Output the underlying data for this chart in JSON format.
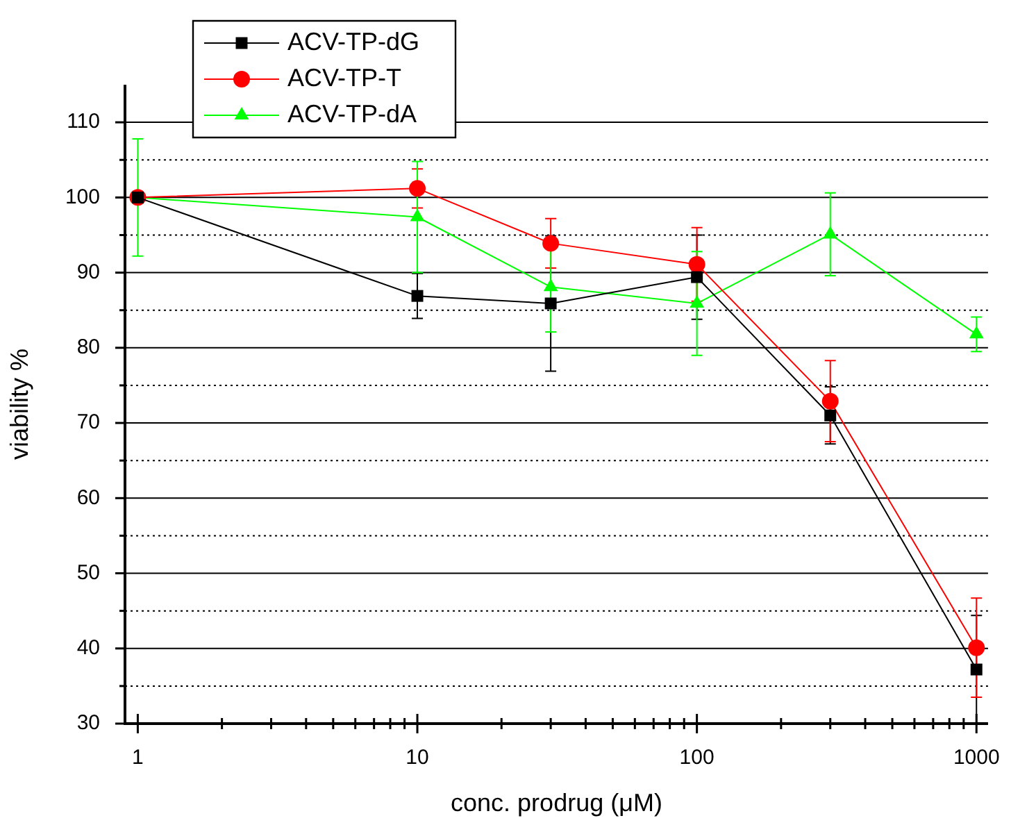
{
  "chart_data": {
    "type": "line",
    "xlabel": "conc. prodrug (μM)",
    "ylabel": "viability %",
    "x": [
      1,
      10,
      30,
      100,
      300,
      1000
    ],
    "log": "x",
    "xlim": [
      0.9,
      1100
    ],
    "xticks": [
      1,
      {
        "value": 2,
        "label": null
      },
      {
        "value": 3,
        "label": null
      },
      {
        "value": 4,
        "label": null
      },
      {
        "value": 5,
        "label": null
      },
      {
        "value": 6,
        "label": null
      },
      {
        "value": 7,
        "label": null
      },
      {
        "value": 8,
        "label": null
      },
      {
        "value": 9,
        "label": null
      },
      10,
      {
        "value": 20,
        "label": null
      },
      {
        "value": 30,
        "label": null
      },
      {
        "value": 40,
        "label": null
      },
      {
        "value": 50,
        "label": null
      },
      {
        "value": 60,
        "label": null
      },
      {
        "value": 70,
        "label": null
      },
      {
        "value": 80,
        "label": null
      },
      {
        "value": 90,
        "label": null
      },
      100,
      {
        "value": 200,
        "label": null
      },
      {
        "value": 300,
        "label": null
      },
      {
        "value": 400,
        "label": null
      },
      {
        "value": 500,
        "label": null
      },
      {
        "value": 600,
        "label": null
      },
      {
        "value": 700,
        "label": null
      },
      {
        "value": 800,
        "label": null
      },
      {
        "value": 900,
        "label": null
      },
      1000
    ],
    "ylim": [
      30,
      115
    ],
    "yticks": [
      30,
      {
        "value": 35,
        "label": null
      },
      40,
      {
        "value": 45,
        "label": null
      },
      50,
      {
        "value": 55,
        "label": null
      },
      60,
      {
        "value": 65,
        "label": null
      },
      70,
      {
        "value": 75,
        "label": null
      },
      80,
      {
        "value": 85,
        "label": null
      },
      90,
      {
        "value": 95,
        "label": null
      },
      100,
      {
        "value": 105,
        "label": null
      },
      110
    ],
    "grid": "y",
    "legend": "top left",
    "line_style": "solid",
    "series": [
      {
        "name": "ACV-TP-dG",
        "color": "#000000",
        "marker": "square",
        "values": [
          100,
          86.9,
          85.9,
          89.4,
          71,
          37.2
        ],
        "errors": [
          null,
          3,
          9,
          5.6,
          3.8,
          7.2
        ]
      },
      {
        "name": "ACV-TP-T",
        "color": "#ff0000",
        "marker": "circle",
        "values": [
          100,
          101.2,
          93.9,
          91.1,
          72.9,
          40.1
        ],
        "errors": [
          null,
          2.6,
          3.3,
          4.9,
          5.4,
          6.6
        ]
      },
      {
        "name": "ACV-TP-dA",
        "color": "#00ff00",
        "marker": "triangle",
        "values": [
          100,
          97.4,
          88.1,
          85.9,
          95.1,
          81.8
        ],
        "errors": [
          7.8,
          7.4,
          6,
          6.9,
          5.5,
          2.3
        ]
      }
    ]
  }
}
